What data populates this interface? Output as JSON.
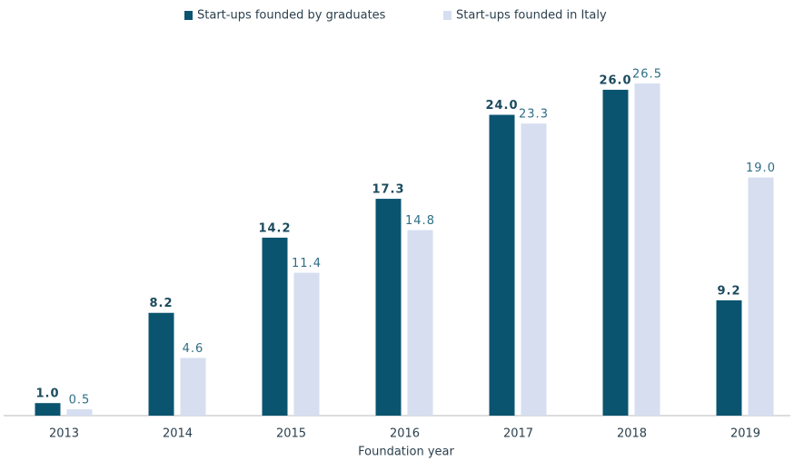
{
  "chart_data": {
    "type": "bar",
    "x_label": "Foundation year",
    "categories": [
      "2013",
      "2014",
      "2015",
      "2016",
      "2017",
      "2018",
      "2019"
    ],
    "series": [
      {
        "name": "Start-ups founded by graduates",
        "color": "#0b5470",
        "values": [
          1.0,
          8.2,
          14.2,
          17.3,
          24.0,
          26.0,
          9.2
        ],
        "value_labels": [
          "1.0",
          "8.2",
          "14.2",
          "17.3",
          "24.0",
          "26.0",
          "9.2"
        ]
      },
      {
        "name": "Start-ups founded in Italy",
        "color": "#d6def0",
        "values": [
          0.5,
          4.6,
          11.4,
          14.8,
          23.3,
          26.5,
          19.0
        ],
        "value_labels": [
          "0.5",
          "4.6",
          "11.4",
          "14.8",
          "23.3",
          "26.5",
          "19.0"
        ]
      }
    ],
    "legend": "top"
  }
}
